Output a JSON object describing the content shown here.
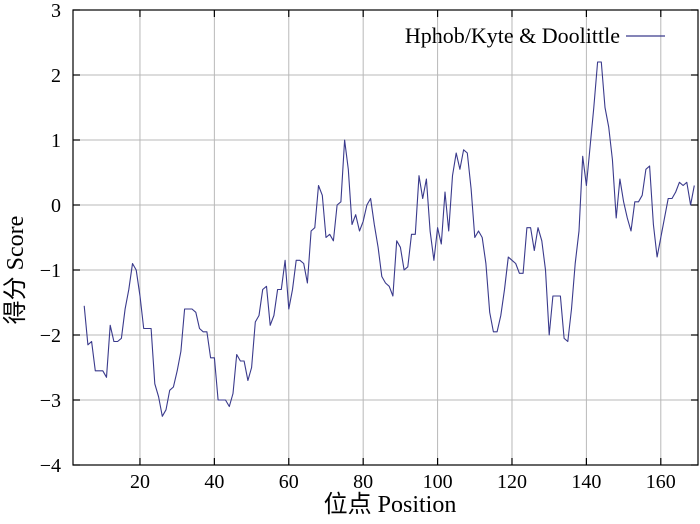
{
  "chart_data": {
    "type": "line",
    "title": "",
    "xlabel": "位点 Position",
    "ylabel": "得分 Score",
    "xlim": [
      2,
      170
    ],
    "ylim": [
      -4,
      3
    ],
    "xticks": [
      20,
      40,
      60,
      80,
      100,
      120,
      140,
      160
    ],
    "yticks": [
      -4,
      -3,
      -2,
      -1,
      0,
      1,
      2,
      3
    ],
    "xtick_labels": [
      "20",
      "40",
      "60",
      "80",
      "100",
      "120",
      "140",
      "160"
    ],
    "ytick_labels": [
      "−4",
      "−3",
      "−2",
      "−1",
      "0",
      "1",
      "2",
      "3"
    ],
    "grid": true,
    "legend_position": "top-right",
    "series": [
      {
        "name": "Hphob/Kyte & Doolittle",
        "color": "#3a3a8c",
        "x": [
          5,
          6,
          7,
          8,
          9,
          10,
          11,
          12,
          13,
          14,
          15,
          16,
          17,
          18,
          19,
          20,
          21,
          22,
          23,
          24,
          25,
          26,
          27,
          28,
          29,
          30,
          31,
          32,
          33,
          34,
          35,
          36,
          37,
          38,
          39,
          40,
          41,
          42,
          43,
          44,
          45,
          46,
          47,
          48,
          49,
          50,
          51,
          52,
          53,
          54,
          55,
          56,
          57,
          58,
          59,
          60,
          61,
          62,
          63,
          64,
          65,
          66,
          67,
          68,
          69,
          70,
          71,
          72,
          73,
          74,
          75,
          76,
          77,
          78,
          79,
          80,
          81,
          82,
          83,
          84,
          85,
          86,
          87,
          88,
          89,
          90,
          91,
          92,
          93,
          94,
          95,
          96,
          97,
          98,
          99,
          100,
          101,
          102,
          103,
          104,
          105,
          106,
          107,
          108,
          109,
          110,
          111,
          112,
          113,
          114,
          115,
          116,
          117,
          118,
          119,
          120,
          121,
          122,
          123,
          124,
          125,
          126,
          127,
          128,
          129,
          130,
          131,
          132,
          133,
          134,
          135,
          136,
          137,
          138,
          139,
          140,
          141,
          142,
          143,
          144,
          145,
          146,
          147,
          148,
          149,
          150,
          151,
          152,
          153,
          154,
          155,
          156,
          157,
          158,
          159,
          160,
          161,
          162,
          163,
          164,
          165,
          166,
          167,
          168,
          169
        ],
        "y": [
          -1.55,
          -2.15,
          -2.1,
          -2.55,
          -2.55,
          -2.55,
          -2.65,
          -1.85,
          -2.1,
          -2.1,
          -2.05,
          -1.6,
          -1.3,
          -0.9,
          -1.0,
          -1.4,
          -1.9,
          -1.9,
          -1.9,
          -2.75,
          -2.95,
          -3.25,
          -3.15,
          -2.85,
          -2.8,
          -2.55,
          -2.25,
          -1.6,
          -1.6,
          -1.6,
          -1.65,
          -1.9,
          -1.95,
          -1.95,
          -2.35,
          -2.35,
          -3.0,
          -3.0,
          -3.0,
          -3.1,
          -2.9,
          -2.3,
          -2.4,
          -2.4,
          -2.7,
          -2.5,
          -1.8,
          -1.7,
          -1.3,
          -1.25,
          -1.85,
          -1.7,
          -1.3,
          -1.3,
          -0.85,
          -1.6,
          -1.3,
          -0.85,
          -0.85,
          -0.9,
          -1.2,
          -0.4,
          -0.35,
          0.3,
          0.15,
          -0.5,
          -0.45,
          -0.55,
          0.0,
          0.05,
          1.0,
          0.55,
          -0.3,
          -0.15,
          -0.4,
          -0.25,
          0.0,
          0.1,
          -0.3,
          -0.65,
          -1.1,
          -1.2,
          -1.25,
          -1.4,
          -0.55,
          -0.65,
          -1.0,
          -0.95,
          -0.45,
          -0.45,
          0.45,
          0.1,
          0.4,
          -0.4,
          -0.85,
          -0.35,
          -0.6,
          0.2,
          -0.4,
          0.45,
          0.8,
          0.55,
          0.85,
          0.8,
          0.25,
          -0.5,
          -0.4,
          -0.5,
          -0.9,
          -1.65,
          -1.95,
          -1.95,
          -1.7,
          -1.3,
          -0.8,
          -0.85,
          -0.9,
          -1.05,
          -1.05,
          -0.35,
          -0.35,
          -0.7,
          -0.35,
          -0.55,
          -1.0,
          -2.0,
          -1.4,
          -1.4,
          -1.4,
          -2.05,
          -2.1,
          -1.6,
          -0.9,
          -0.4,
          0.75,
          0.3,
          0.9,
          1.5,
          2.2,
          2.2,
          1.5,
          1.2,
          0.7,
          -0.2,
          0.4,
          0.05,
          -0.2,
          -0.4,
          0.05,
          0.05,
          0.15,
          0.55,
          0.6,
          -0.3,
          -0.8,
          -0.5,
          -0.2,
          0.1,
          0.1,
          0.2,
          0.35,
          0.3,
          0.35,
          0.0,
          0.3
        ]
      }
    ]
  }
}
